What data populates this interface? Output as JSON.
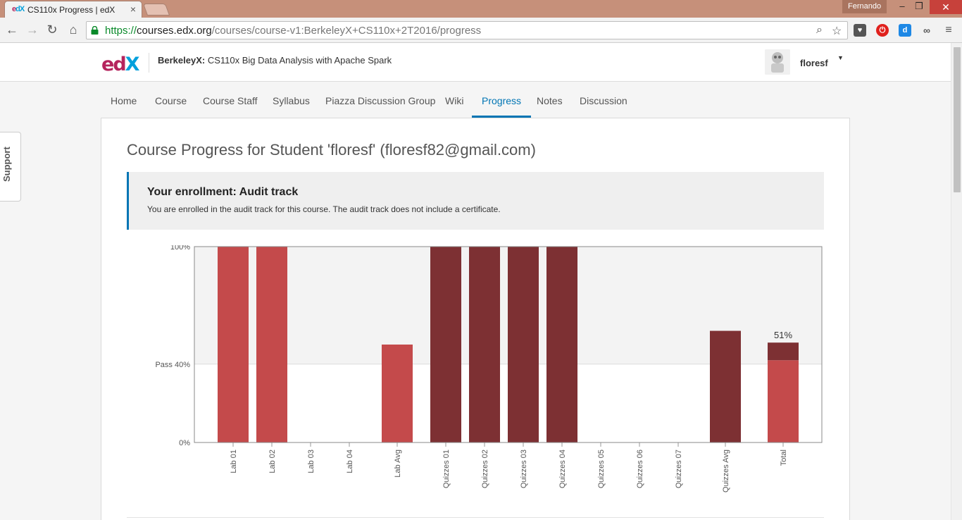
{
  "browser": {
    "tab_title": "CS110x Progress | edX",
    "tab_favicon_e": "e",
    "tab_favicon_rest": "dX",
    "profile_name": "Fernando",
    "url_scheme": "https://",
    "url_host": "courses.edx.org",
    "url_path": "/courses/course-v1:BerkeleyX+CS110x+2T2016/progress"
  },
  "header": {
    "logo_e": "e",
    "logo_d": "d",
    "logo_x": "X",
    "course_org": "BerkeleyX:",
    "course_name": " CS110x Big Data Analysis with Apache Spark",
    "username": "floresf"
  },
  "nav": {
    "tabs": [
      "Home",
      "Course",
      "Course Staff",
      "Syllabus",
      "Piazza Discussion Group",
      "Wiki",
      "Progress",
      "Notes",
      "Discussion"
    ],
    "active": "Progress"
  },
  "main": {
    "title": "Course Progress for Student 'floresf' (floresf82@gmail.com)",
    "enrollment_title": "Your enrollment: Audit track",
    "enrollment_message": "You are enrolled in the audit track for this course. The audit track does not include a certificate."
  },
  "support_label": "Support",
  "chart_data": {
    "type": "bar",
    "y_ticks": [
      {
        "label": "100%",
        "value": 100
      },
      {
        "label": "Pass 40%",
        "value": 40
      },
      {
        "label": "0%",
        "value": 0
      }
    ],
    "ylim": [
      0,
      100
    ],
    "categories": [
      "Lab 01",
      "Lab 02",
      "Lab 03",
      "Lab 04",
      "Lab Avg",
      "Quizzes 01",
      "Quizzes 02",
      "Quizzes 03",
      "Quizzes 04",
      "Quizzes 05",
      "Quizzes 06",
      "Quizzes 07",
      "Quizzes Avg",
      "Total"
    ],
    "series": [
      {
        "name": "Lab",
        "color": "#c44a4b",
        "values": [
          100,
          100,
          0,
          0,
          50,
          null,
          null,
          null,
          null,
          null,
          null,
          null,
          null,
          null
        ]
      },
      {
        "name": "Quizzes",
        "color": "#7d3033",
        "values": [
          null,
          null,
          null,
          null,
          null,
          100,
          100,
          100,
          100,
          0,
          0,
          0,
          57,
          null
        ]
      }
    ],
    "total": {
      "label": "51%",
      "value": 51,
      "lab_portion": 42,
      "quiz_portion": 9
    },
    "pass_line": 40,
    "colors": {
      "above_pass_bg": "#f3f3f3",
      "below_pass_bg": "#ffffff"
    }
  }
}
